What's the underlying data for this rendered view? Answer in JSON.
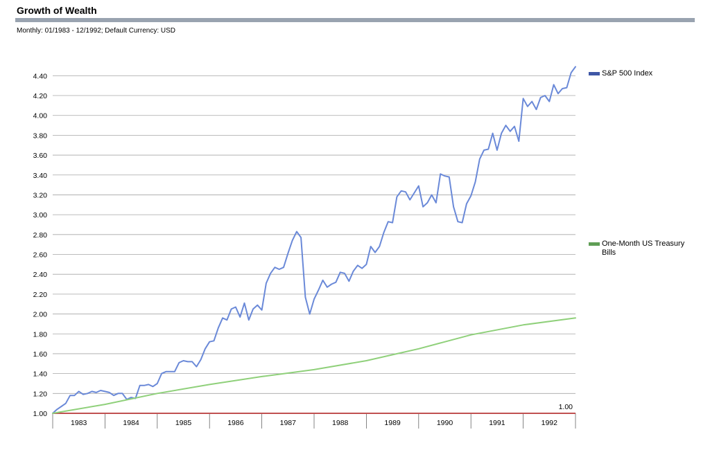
{
  "header": {
    "title": "Growth of Wealth",
    "subtitle": "Monthly: 01/1983 - 12/1992; Default Currency: USD"
  },
  "chart_data": {
    "type": "line",
    "title": "Growth of Wealth",
    "subtitle": "Monthly: 01/1983 - 12/1992; Default Currency: USD",
    "xlabel": "",
    "ylabel": "",
    "ylim": [
      1.0,
      4.5
    ],
    "yticks": [
      1.0,
      1.2,
      1.4,
      1.6,
      1.8,
      2.0,
      2.2,
      2.4,
      2.6,
      2.8,
      3.0,
      3.2,
      3.4,
      3.6,
      3.8,
      4.0,
      4.2,
      4.4
    ],
    "ytick_labels": [
      "1.00",
      "1.20",
      "1.40",
      "1.60",
      "1.80",
      "2.00",
      "2.20",
      "2.40",
      "2.60",
      "2.80",
      "3.00",
      "3.20",
      "3.40",
      "3.60",
      "3.80",
      "4.00",
      "4.20",
      "4.40"
    ],
    "x_categories": [
      "1983",
      "1984",
      "1985",
      "1986",
      "1987",
      "1988",
      "1989",
      "1990",
      "1991",
      "1992"
    ],
    "grid": true,
    "legend_position": "right",
    "baseline": {
      "value": 1.0,
      "label": "1.00",
      "color": "#c05050"
    },
    "series": [
      {
        "name": "S&P 500 Index",
        "color": "#6a89d8",
        "legend_color": "#3f57a6",
        "x": [
          "1982-12",
          "1983-01",
          "1983-02",
          "1983-03",
          "1983-04",
          "1983-05",
          "1983-06",
          "1983-07",
          "1983-08",
          "1983-09",
          "1983-10",
          "1983-11",
          "1983-12",
          "1984-01",
          "1984-02",
          "1984-03",
          "1984-04",
          "1984-05",
          "1984-06",
          "1984-07",
          "1984-08",
          "1984-09",
          "1984-10",
          "1984-11",
          "1984-12",
          "1985-01",
          "1985-02",
          "1985-03",
          "1985-04",
          "1985-05",
          "1985-06",
          "1985-07",
          "1985-08",
          "1985-09",
          "1985-10",
          "1985-11",
          "1985-12",
          "1986-01",
          "1986-02",
          "1986-03",
          "1986-04",
          "1986-05",
          "1986-06",
          "1986-07",
          "1986-08",
          "1986-09",
          "1986-10",
          "1986-11",
          "1986-12",
          "1987-01",
          "1987-02",
          "1987-03",
          "1987-04",
          "1987-05",
          "1987-06",
          "1987-07",
          "1987-08",
          "1987-09",
          "1987-10",
          "1987-11",
          "1987-12",
          "1988-01",
          "1988-02",
          "1988-03",
          "1988-04",
          "1988-05",
          "1988-06",
          "1988-07",
          "1988-08",
          "1988-09",
          "1988-10",
          "1988-11",
          "1988-12",
          "1989-01",
          "1989-02",
          "1989-03",
          "1989-04",
          "1989-05",
          "1989-06",
          "1989-07",
          "1989-08",
          "1989-09",
          "1989-10",
          "1989-11",
          "1989-12",
          "1990-01",
          "1990-02",
          "1990-03",
          "1990-04",
          "1990-05",
          "1990-06",
          "1990-07",
          "1990-08",
          "1990-09",
          "1990-10",
          "1990-11",
          "1990-12",
          "1991-01",
          "1991-02",
          "1991-03",
          "1991-04",
          "1991-05",
          "1991-06",
          "1991-07",
          "1991-08",
          "1991-09",
          "1991-10",
          "1991-11",
          "1991-12",
          "1992-01",
          "1992-02",
          "1992-03",
          "1992-04",
          "1992-05",
          "1992-06",
          "1992-07",
          "1992-08",
          "1992-09",
          "1992-10",
          "1992-11",
          "1992-12"
        ],
        "values": [
          1.0,
          1.04,
          1.07,
          1.1,
          1.18,
          1.18,
          1.22,
          1.19,
          1.2,
          1.22,
          1.21,
          1.23,
          1.22,
          1.21,
          1.18,
          1.2,
          1.2,
          1.14,
          1.16,
          1.15,
          1.28,
          1.28,
          1.29,
          1.27,
          1.3,
          1.4,
          1.42,
          1.42,
          1.42,
          1.51,
          1.53,
          1.52,
          1.52,
          1.47,
          1.54,
          1.65,
          1.72,
          1.73,
          1.86,
          1.96,
          1.94,
          2.05,
          2.07,
          1.97,
          2.11,
          1.94,
          2.05,
          2.09,
          2.04,
          2.31,
          2.41,
          2.47,
          2.45,
          2.47,
          2.61,
          2.74,
          2.83,
          2.77,
          2.17,
          2.0,
          2.15,
          2.24,
          2.34,
          2.27,
          2.3,
          2.32,
          2.42,
          2.41,
          2.33,
          2.43,
          2.49,
          2.46,
          2.5,
          2.68,
          2.62,
          2.68,
          2.82,
          2.93,
          2.92,
          3.18,
          3.24,
          3.23,
          3.15,
          3.22,
          3.29,
          3.08,
          3.12,
          3.2,
          3.12,
          3.41,
          3.39,
          3.38,
          3.08,
          2.93,
          2.92,
          3.11,
          3.19,
          3.33,
          3.56,
          3.65,
          3.66,
          3.82,
          3.65,
          3.82,
          3.9,
          3.84,
          3.89,
          3.74,
          4.17,
          4.09,
          4.14,
          4.06,
          4.18,
          4.2,
          4.14,
          4.31,
          4.22,
          4.27,
          4.28,
          4.43,
          4.49
        ]
      },
      {
        "name": "One-Month US Treasury Bills",
        "color": "#8fd07a",
        "legend_color": "#5f9e55",
        "x": [
          "1982-12",
          "1983-12",
          "1984-12",
          "1985-12",
          "1986-12",
          "1987-12",
          "1988-12",
          "1989-12",
          "1990-12",
          "1991-12",
          "1992-12"
        ],
        "values": [
          1.0,
          1.09,
          1.2,
          1.29,
          1.37,
          1.44,
          1.53,
          1.65,
          1.79,
          1.89,
          1.96
        ]
      }
    ]
  }
}
